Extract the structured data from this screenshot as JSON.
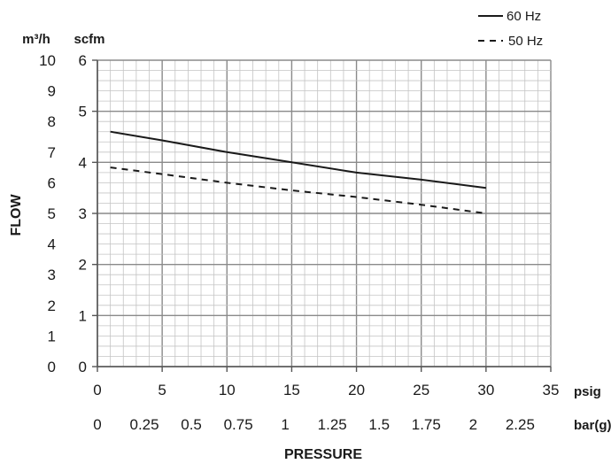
{
  "chart_data": {
    "type": "line",
    "xlabel": "PRESSURE",
    "ylabel": "FLOW",
    "x_unit_primary": "psig",
    "x_unit_secondary": "bar(g)",
    "y_unit_primary": "scfm",
    "y_unit_secondary": "m³/h",
    "xlim": [
      0,
      35
    ],
    "ylim": [
      0,
      6
    ],
    "y2lim": [
      0,
      10
    ],
    "x_ticks_primary": [
      "0",
      "5",
      "10",
      "15",
      "20",
      "25",
      "30",
      "35"
    ],
    "x_ticks_secondary": [
      "0",
      "0.25",
      "0.5",
      "0.75",
      "1",
      "1.25",
      "1.5",
      "1.75",
      "2",
      "2.25"
    ],
    "y_ticks_primary": [
      "0",
      "1",
      "2",
      "3",
      "4",
      "5",
      "6"
    ],
    "y_ticks_secondary": [
      "0",
      "1",
      "2",
      "3",
      "4",
      "5",
      "6",
      "7",
      "8",
      "9",
      "10"
    ],
    "grid": true,
    "legend_position": "top-right",
    "series": [
      {
        "name": "60 Hz",
        "style": "solid",
        "color": "#1a1a1a",
        "x": [
          1,
          5,
          10,
          15,
          20,
          25,
          30
        ],
        "y": [
          4.6,
          4.43,
          4.2,
          4.0,
          3.8,
          3.66,
          3.5
        ]
      },
      {
        "name": "50 Hz",
        "style": "dashed",
        "color": "#1a1a1a",
        "x": [
          1,
          5,
          10,
          15,
          20,
          25,
          30
        ],
        "y": [
          3.9,
          3.77,
          3.6,
          3.45,
          3.32,
          3.17,
          3.0
        ]
      }
    ]
  }
}
